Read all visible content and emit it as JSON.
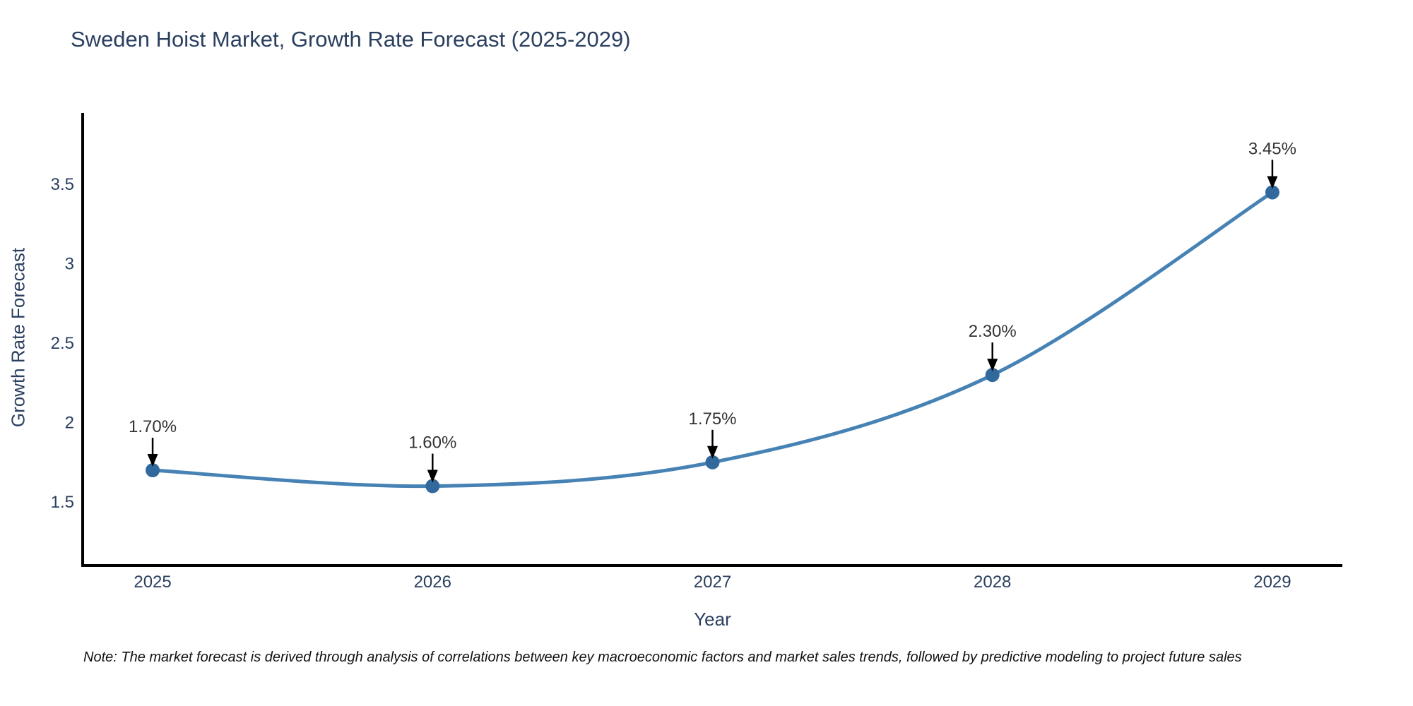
{
  "title": "Sweden Hoist Market, Growth Rate Forecast (2025-2029)",
  "note": "Note: The market forecast is derived through analysis of correlations between key macroeconomic factors and market sales trends, followed by predictive modeling to project future sales",
  "chart_data": {
    "type": "line",
    "title": "Sweden Hoist Market, Growth Rate Forecast (2025-2029)",
    "xlabel": "Year",
    "ylabel": "Growth Rate Forecast",
    "x": [
      2025,
      2026,
      2027,
      2028,
      2029
    ],
    "values": [
      1.7,
      1.6,
      1.75,
      2.3,
      3.45
    ],
    "point_labels": [
      "1.70%",
      "1.60%",
      "1.75%",
      "2.30%",
      "3.45%"
    ],
    "x_ticks": [
      "2025",
      "2026",
      "2027",
      "2028",
      "2029"
    ],
    "y_ticks": [
      "1.5",
      "2",
      "2.5",
      "3",
      "3.5"
    ],
    "y_tick_values": [
      1.5,
      2,
      2.5,
      3,
      3.5
    ],
    "xlim": [
      2024.75,
      2029.25
    ],
    "ylim": [
      1.1,
      3.95
    ],
    "grid": false,
    "legend": "none",
    "line_shape": "spline",
    "marker": "circle",
    "colors": {
      "line": "#4682b4",
      "marker": "#31699c",
      "axis": "#000000",
      "tick_text": "#2a3f5f",
      "annotation_text": "#333333",
      "arrow": "#000000",
      "background": "#ffffff"
    }
  }
}
